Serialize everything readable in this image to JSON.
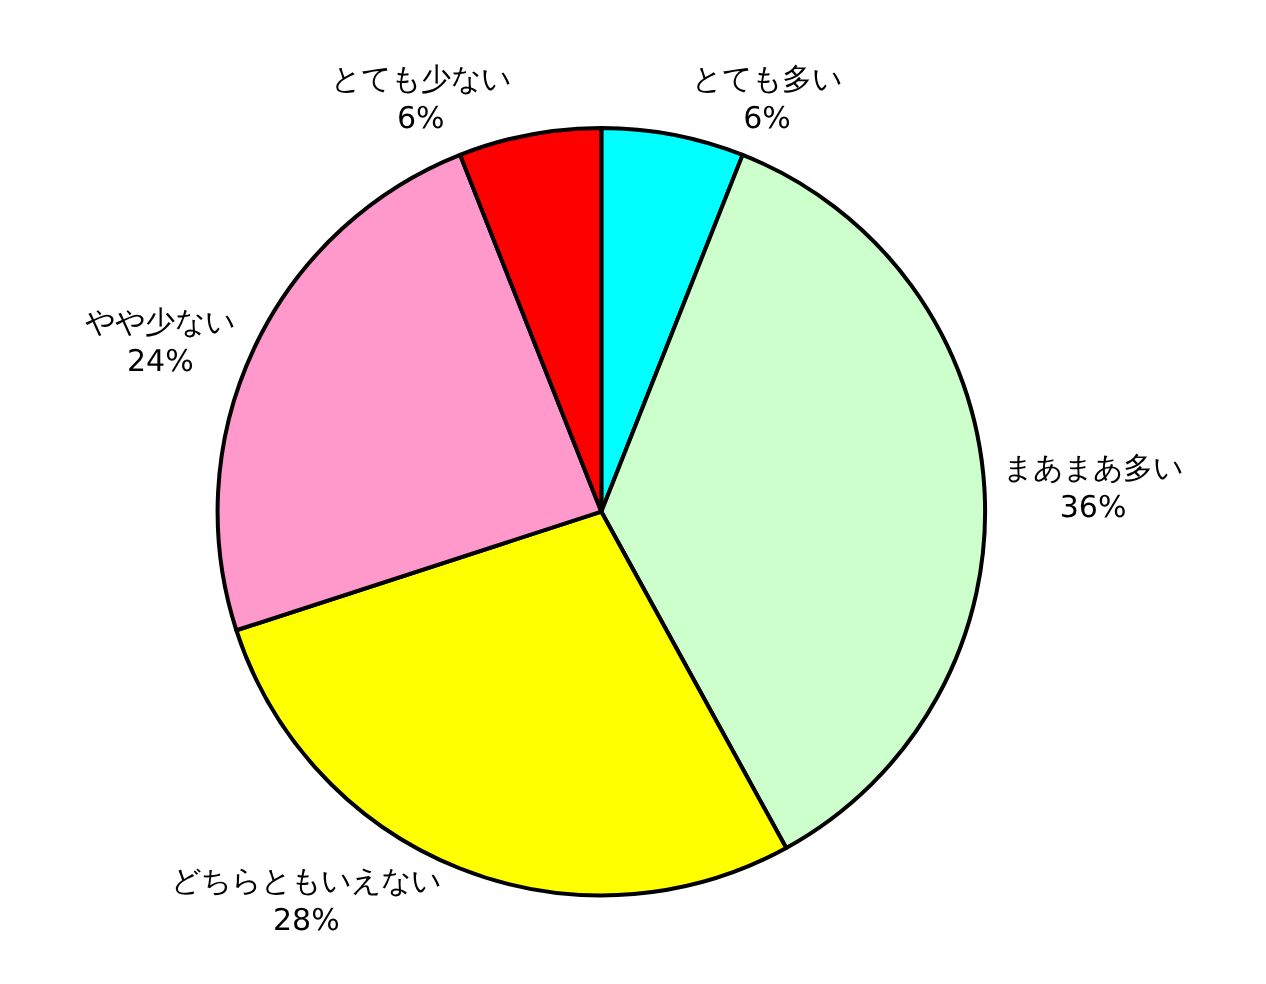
{
  "chart_data": {
    "type": "pie",
    "categories": [
      "とても多い",
      "まあまあ多い",
      "どちらともいえない",
      "やや少ない",
      "とても少ない"
    ],
    "values": [
      6,
      36,
      28,
      24,
      6
    ],
    "value_labels": [
      "6%",
      "36%",
      "28%",
      "24%",
      "6%"
    ],
    "colors": [
      "#00ffff",
      "#ccffcc",
      "#ffff00",
      "#ff99cc",
      "#ff0000"
    ],
    "legend": false
  }
}
